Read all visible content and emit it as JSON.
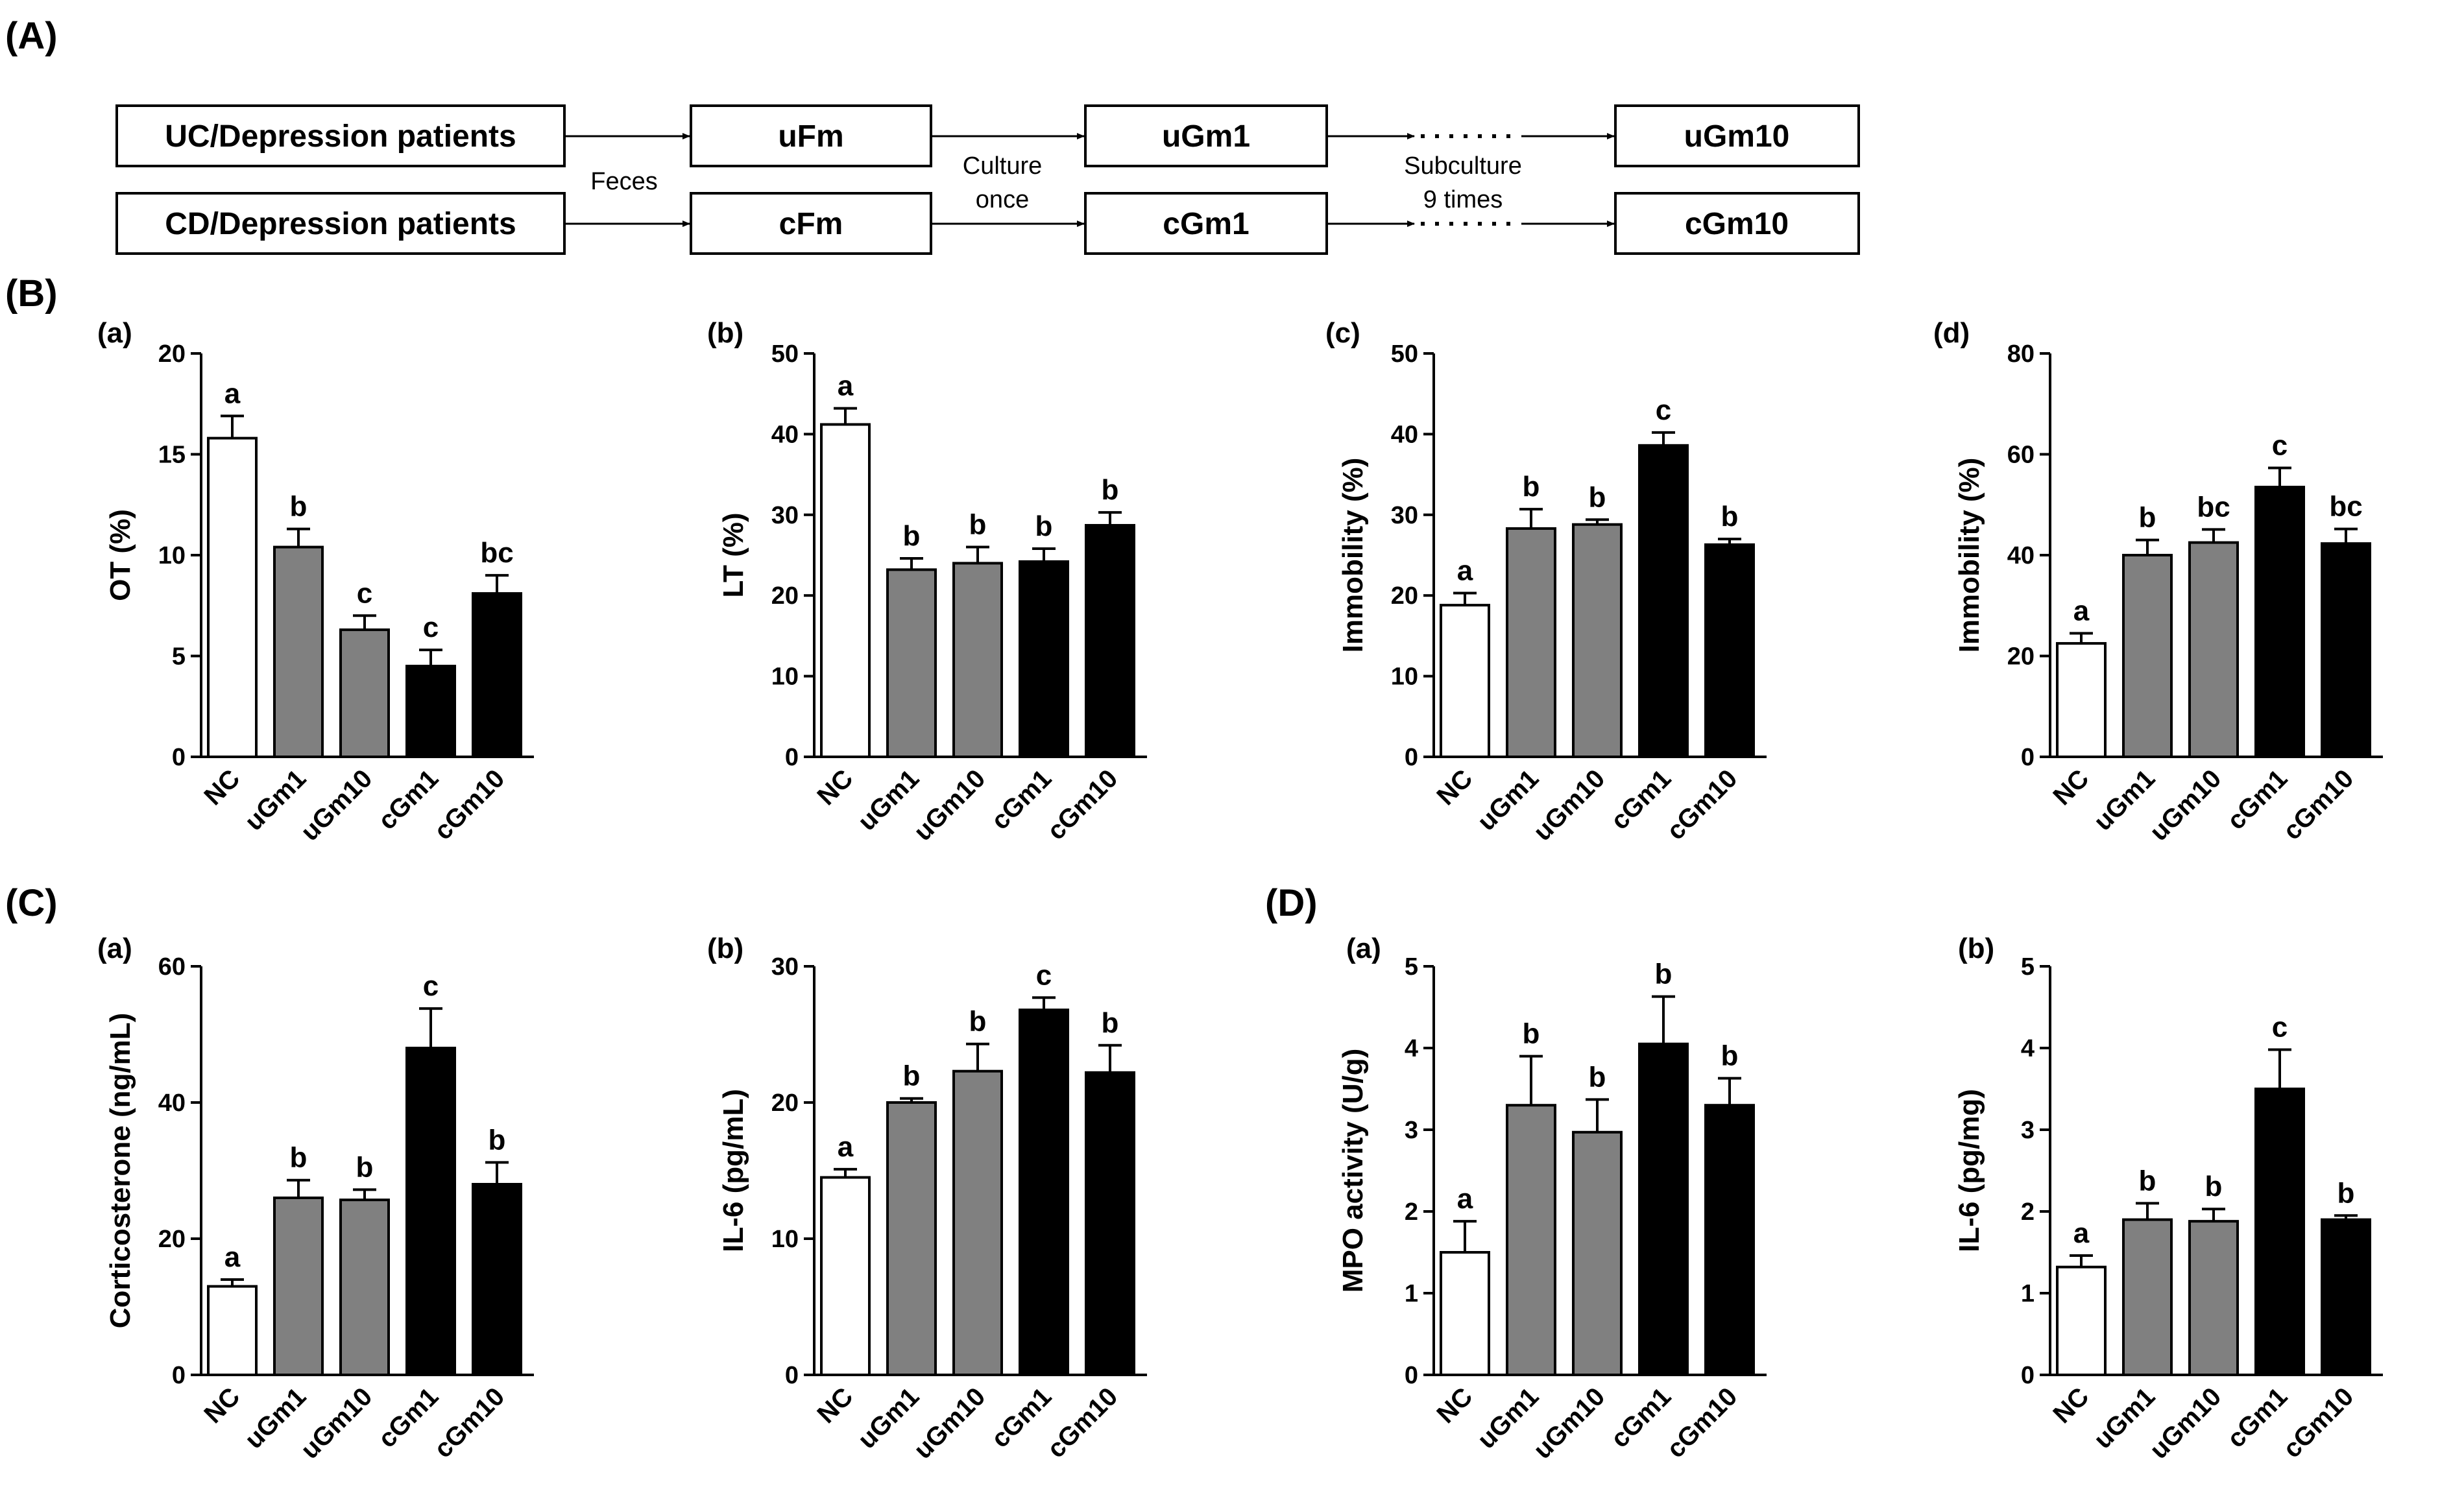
{
  "panels": {
    "A": "(A)",
    "B": "(B)",
    "C": "(C)",
    "D": "(D)"
  },
  "workflow": {
    "row1": {
      "source": "UC/Depression patients",
      "fm": "uFm",
      "gm1": "uGm1",
      "gm10": "uGm10"
    },
    "row2": {
      "source": "CD/Depression patients",
      "fm": "cFm",
      "gm1": "cGm1",
      "gm10": "cGm10"
    },
    "feces_label": "Feces",
    "culture_line1": "Culture",
    "culture_line2": "once",
    "subculture_line1": "Subculture",
    "subculture_line2": "9 times"
  },
  "colors": {
    "NC": "#ffffff",
    "uGm": "#808080",
    "cGm": "#000000"
  },
  "chart_data": [
    {
      "id": "B-a",
      "type": "bar",
      "sublabel": "(a)",
      "ylabel": "OT (%)",
      "categories": [
        "NC",
        "uGm1",
        "uGm10",
        "cGm1",
        "cGm10"
      ],
      "values": [
        15.8,
        10.4,
        6.3,
        4.5,
        8.1
      ],
      "errors": [
        1.1,
        0.9,
        0.7,
        0.8,
        0.9
      ],
      "letters": [
        "a",
        "b",
        "c",
        "c",
        "bc"
      ],
      "ylim": [
        0,
        20
      ],
      "yticks": [
        "0",
        "5",
        "10",
        "15",
        "20"
      ]
    },
    {
      "id": "B-b",
      "type": "bar",
      "sublabel": "(b)",
      "ylabel": "LT (%)",
      "categories": [
        "NC",
        "uGm1",
        "uGm10",
        "cGm1",
        "cGm10"
      ],
      "values": [
        41.2,
        23.2,
        24.0,
        24.2,
        28.7
      ],
      "errors": [
        2.0,
        1.4,
        2.0,
        1.6,
        1.6
      ],
      "letters": [
        "a",
        "b",
        "b",
        "b",
        "b"
      ],
      "ylim": [
        0,
        50
      ],
      "yticks": [
        "0",
        "10",
        "20",
        "30",
        "40",
        "50"
      ]
    },
    {
      "id": "B-c",
      "type": "bar",
      "sublabel": "(c)",
      "ylabel": "Immobility (%)",
      "categories": [
        "NC",
        "uGm1",
        "uGm10",
        "cGm1",
        "cGm10"
      ],
      "values": [
        18.8,
        28.3,
        28.8,
        38.6,
        26.3
      ],
      "errors": [
        1.5,
        2.4,
        0.6,
        1.6,
        0.7
      ],
      "letters": [
        "a",
        "b",
        "b",
        "c",
        "b"
      ],
      "ylim": [
        0,
        50
      ],
      "yticks": [
        "0",
        "10",
        "20",
        "30",
        "40",
        "50"
      ]
    },
    {
      "id": "B-d",
      "type": "bar",
      "sublabel": "(d)",
      "ylabel": "Immobility (%)",
      "categories": [
        "NC",
        "uGm1",
        "uGm10",
        "cGm1",
        "cGm10"
      ],
      "values": [
        22.5,
        40.0,
        42.5,
        53.5,
        42.3
      ],
      "errors": [
        2.0,
        3.0,
        2.6,
        3.8,
        2.9
      ],
      "letters": [
        "a",
        "b",
        "bc",
        "c",
        "bc"
      ],
      "ylim": [
        0,
        80
      ],
      "yticks": [
        "0",
        "20",
        "40",
        "60",
        "80"
      ]
    },
    {
      "id": "C-a",
      "type": "bar",
      "sublabel": "(a)",
      "ylabel": "Corticosterone (ng/mL)",
      "categories": [
        "NC",
        "uGm1",
        "uGm10",
        "cGm1",
        "cGm10"
      ],
      "values": [
        13.0,
        26.0,
        25.7,
        48.0,
        28.0
      ],
      "errors": [
        1.0,
        2.6,
        1.5,
        5.8,
        3.2
      ],
      "letters": [
        "a",
        "b",
        "b",
        "c",
        "b"
      ],
      "ylim": [
        0,
        60
      ],
      "yticks": [
        "0",
        "20",
        "40",
        "60"
      ]
    },
    {
      "id": "C-b",
      "type": "bar",
      "sublabel": "(b)",
      "ylabel": "IL-6 (pg/mL)",
      "categories": [
        "NC",
        "uGm1",
        "uGm10",
        "cGm1",
        "cGm10"
      ],
      "values": [
        14.5,
        20.0,
        22.3,
        26.8,
        22.2
      ],
      "errors": [
        0.6,
        0.3,
        2.0,
        0.9,
        2.0
      ],
      "letters": [
        "a",
        "b",
        "b",
        "c",
        "b"
      ],
      "ylim": [
        0,
        30
      ],
      "yticks": [
        "0",
        "10",
        "20",
        "30"
      ]
    },
    {
      "id": "D-a",
      "type": "bar",
      "sublabel": "(a)",
      "ylabel": "MPO activity (U/g)",
      "categories": [
        "NC",
        "uGm1",
        "uGm10",
        "cGm1",
        "cGm10"
      ],
      "values": [
        1.5,
        3.3,
        2.97,
        4.05,
        3.3
      ],
      "errors": [
        0.38,
        0.6,
        0.4,
        0.58,
        0.33
      ],
      "letters": [
        "a",
        "b",
        "b",
        "b",
        "b"
      ],
      "ylim": [
        0,
        5
      ],
      "yticks": [
        "0",
        "1",
        "2",
        "3",
        "4",
        "5"
      ]
    },
    {
      "id": "D-b",
      "type": "bar",
      "sublabel": "(b)",
      "ylabel": "IL-6 (pg/mg)",
      "categories": [
        "NC",
        "uGm1",
        "uGm10",
        "cGm1",
        "cGm10"
      ],
      "values": [
        1.32,
        1.9,
        1.88,
        3.5,
        1.9
      ],
      "errors": [
        0.14,
        0.2,
        0.15,
        0.48,
        0.05
      ],
      "letters": [
        "a",
        "b",
        "b",
        "c",
        "b"
      ],
      "ylim": [
        0,
        5
      ],
      "yticks": [
        "0",
        "1",
        "2",
        "3",
        "4",
        "5"
      ]
    }
  ]
}
